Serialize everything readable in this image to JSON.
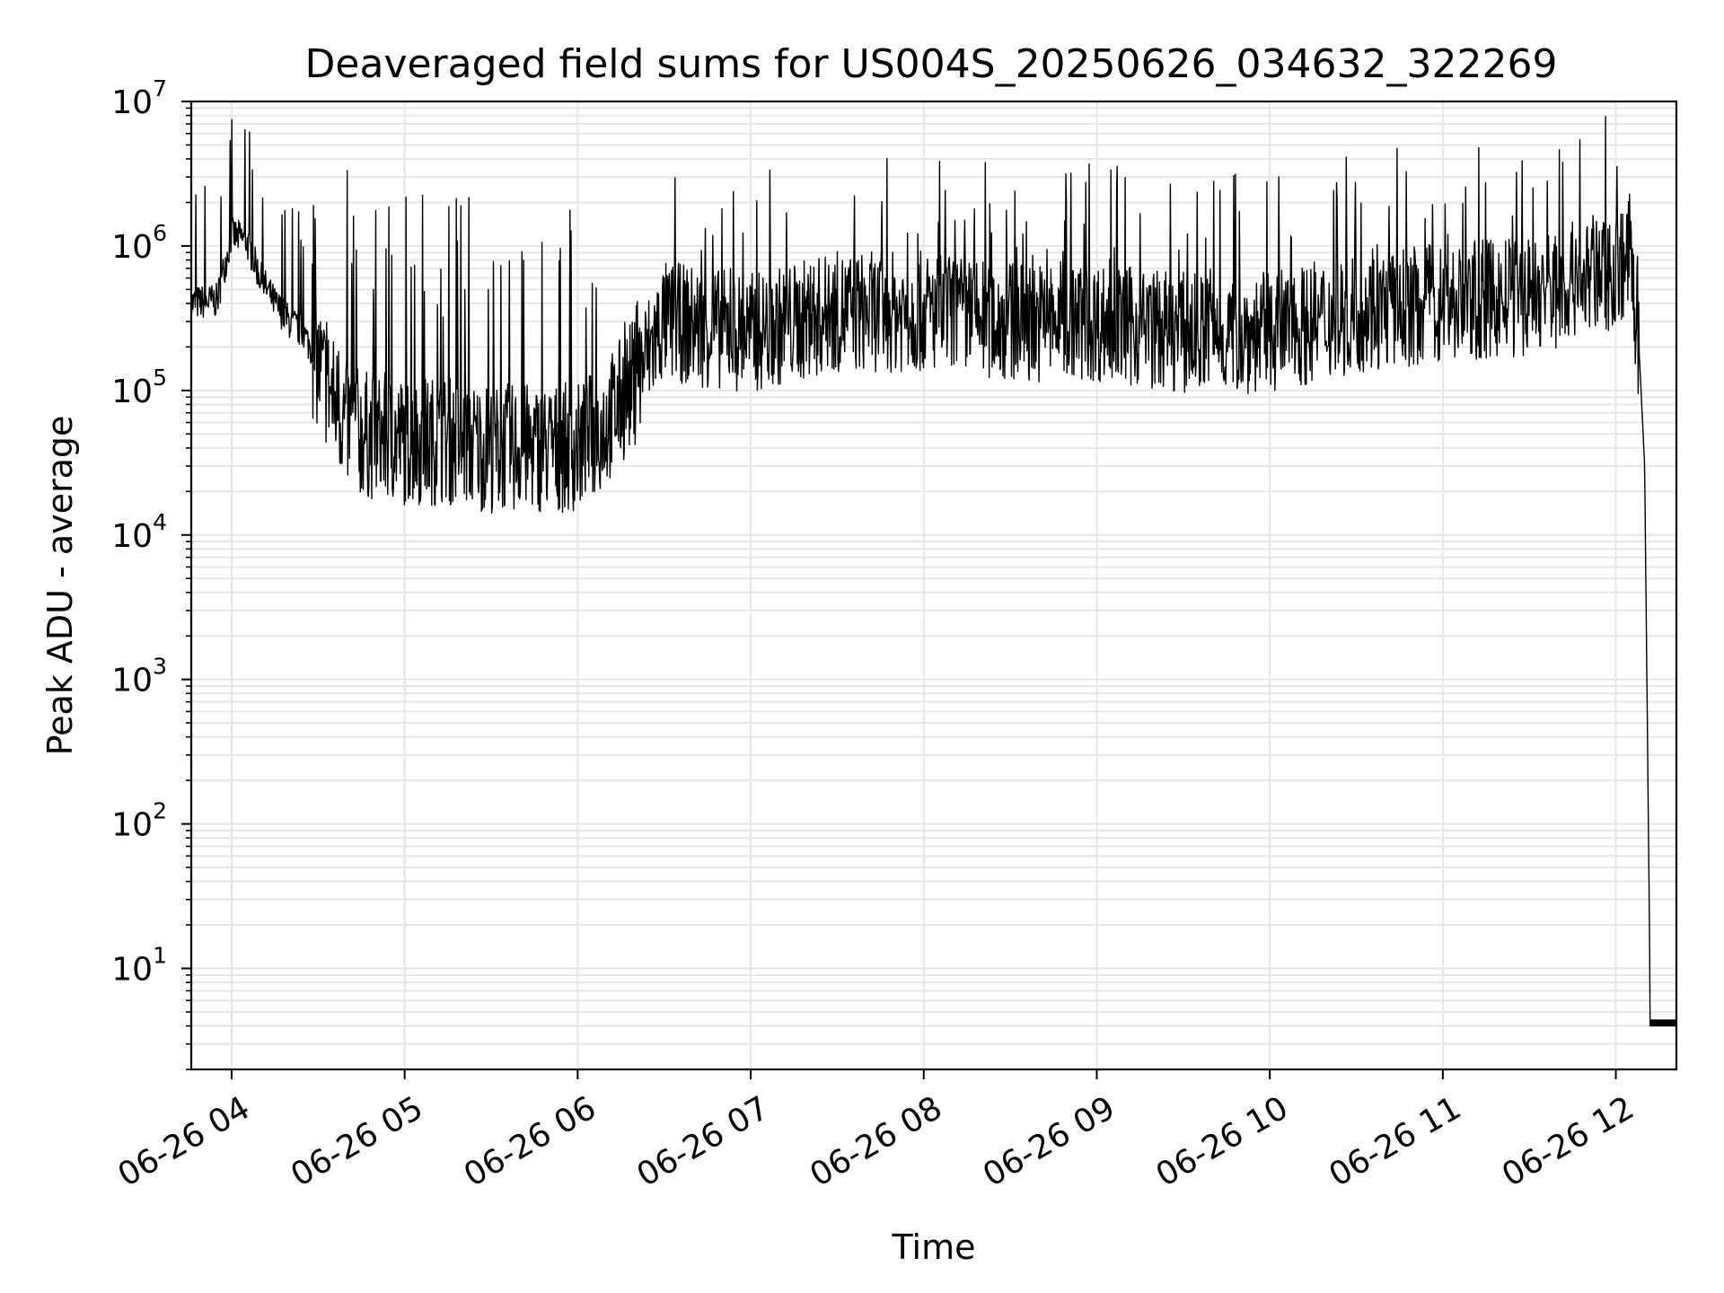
{
  "chart_data": {
    "type": "line",
    "title": "Deaveraged field sums for US004S_20250626_034632_322269",
    "xlabel": "Time",
    "ylabel": "Peak ADU - average",
    "yscale": "log",
    "ylim": [
      2,
      10000000
    ],
    "xlim": [
      "2025-06-26 03:46",
      "2025-06-26 12:21"
    ],
    "grid": true,
    "line_color": "#000000",
    "x_ticks": [
      "06-26 04",
      "06-26 05",
      "06-26 06",
      "06-26 07",
      "06-26 08",
      "06-26 09",
      "06-26 10",
      "06-26 11",
      "06-26 12"
    ],
    "y_ticks": [
      {
        "base": "10",
        "exp": "1"
      },
      {
        "base": "10",
        "exp": "2"
      },
      {
        "base": "10",
        "exp": "3"
      },
      {
        "base": "10",
        "exp": "4"
      },
      {
        "base": "10",
        "exp": "5"
      },
      {
        "base": "10",
        "exp": "6"
      },
      {
        "base": "10",
        "exp": "7"
      }
    ],
    "series": [
      {
        "x": [
          "2025-06-26 03:46",
          "2025-06-26 03:55",
          "2025-06-26 04:00",
          "2025-06-26 04:05",
          "2025-06-26 04:10",
          "2025-06-26 04:15",
          "2025-06-26 04:20",
          "2025-06-26 04:25",
          "2025-06-26 04:30",
          "2025-06-26 04:35",
          "2025-06-26 04:40",
          "2025-06-26 04:45",
          "2025-06-26 05:00",
          "2025-06-26 05:15",
          "2025-06-26 05:30",
          "2025-06-26 05:45",
          "2025-06-26 06:00",
          "2025-06-26 06:10",
          "2025-06-26 06:20",
          "2025-06-26 06:30",
          "2025-06-26 07:00",
          "2025-06-26 07:30",
          "2025-06-26 08:00",
          "2025-06-26 08:30",
          "2025-06-26 09:00",
          "2025-06-26 09:30",
          "2025-06-26 10:00",
          "2025-06-26 10:30",
          "2025-06-26 11:00",
          "2025-06-26 11:30",
          "2025-06-26 12:00",
          "2025-06-26 12:05",
          "2025-06-26 12:08",
          "2025-06-26 12:10",
          "2025-06-26 12:12",
          "2025-06-26 12:21"
        ],
        "y": [
          400000,
          420000,
          1200000,
          1100000,
          600000,
          400000,
          300000,
          250000,
          150000,
          90000,
          60000,
          50000,
          45000,
          45000,
          40000,
          40000,
          40000,
          60000,
          120000,
          300000,
          250000,
          350000,
          350000,
          300000,
          300000,
          250000,
          250000,
          350000,
          400000,
          450000,
          700000,
          900000,
          200000,
          30000,
          4,
          4
        ]
      }
    ]
  }
}
